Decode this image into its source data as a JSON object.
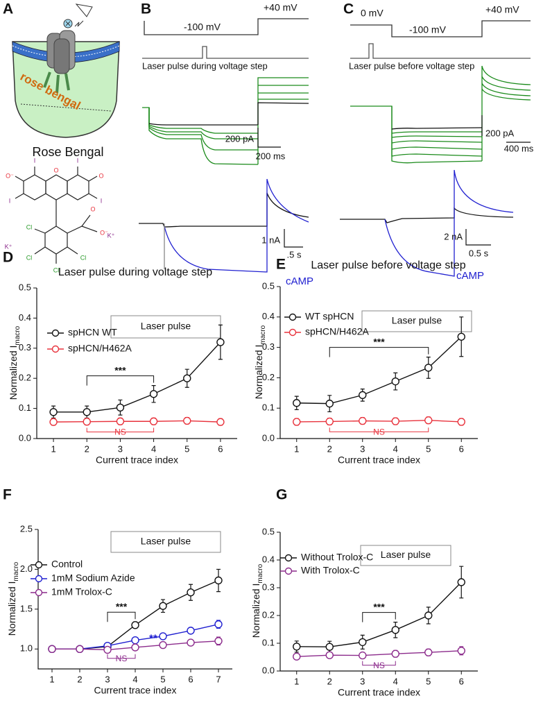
{
  "panel_labels": [
    "A",
    "B",
    "C",
    "D",
    "E",
    "F",
    "G"
  ],
  "panel_a": {
    "dye_label": "rose bengal",
    "title": "Rose Bengal",
    "atoms": [
      "O⁻",
      "I",
      "O",
      "I",
      "O",
      "I",
      "I",
      "O",
      "O⁻",
      "K⁺",
      "K⁺",
      "Cl",
      "Cl",
      "Cl",
      "Cl"
    ]
  },
  "panel_b": {
    "step_high": "+40 mV",
    "step_low": "-100 mV",
    "laser": "Laser pulse during voltage step",
    "scale_current": "200 pA",
    "scale_time": "200 ms",
    "scale_current2": "1 nA",
    "scale_time2": ".5 s",
    "camp": "cAMP"
  },
  "panel_c": {
    "step_zero": "0 mV",
    "step_low": "-100 mV",
    "step_high": "+40 mV",
    "laser": "Laser pulse before voltage step",
    "scale_current": "200 pA",
    "scale_time": "400 ms",
    "scale_current2": "2 nA",
    "scale_time2": "0.5 s",
    "camp": "cAMP"
  },
  "chart_data": [
    {
      "type": "line",
      "title": "Laser pulse during voltage step",
      "box_label": "Laser pulse",
      "xlabel": "Current trace index",
      "ylabel": "Normalized I",
      "ylabel_sub": "macro",
      "x": [
        1,
        2,
        3,
        4,
        5,
        6
      ],
      "xlim": [
        0.5,
        6.5
      ],
      "xticks": [
        1,
        2,
        3,
        4,
        5,
        6
      ],
      "ylim": [
        0,
        0.5
      ],
      "yticks": [
        {
          "value": 0,
          "label": "0.0"
        },
        0.1,
        0.2,
        0.3,
        0.4,
        0.5
      ],
      "legend": "upper left",
      "series": [
        {
          "name": "spHCN WT",
          "color": "#111111",
          "values": [
            0.088,
            0.088,
            0.103,
            0.148,
            0.2,
            0.32
          ],
          "errors": [
            0.02,
            0.02,
            0.025,
            0.028,
            0.03,
            0.057
          ]
        },
        {
          "name": "spHCN/H462A",
          "color": "#e8323c",
          "values": [
            0.055,
            0.056,
            0.057,
            0.057,
            0.059,
            0.055
          ],
          "errors": [
            0.011,
            0.011,
            0.011,
            0.011,
            0.011,
            0.011
          ]
        }
      ],
      "annotations": [
        {
          "text": "***",
          "from": 2,
          "to": 4,
          "side": "above",
          "color": "#111111"
        },
        {
          "text": "NS",
          "from": 2,
          "to": 4,
          "side": "below",
          "color": "#e8323c"
        }
      ]
    },
    {
      "type": "line",
      "title": "Laser pulse before voltage step",
      "box_label": "Laser pulse",
      "xlabel": "Current trace index",
      "ylabel": "Normalized I",
      "ylabel_sub": "macro",
      "x": [
        1,
        2,
        3,
        4,
        5,
        6
      ],
      "xlim": [
        0.5,
        6.5
      ],
      "xticks": [
        1,
        2,
        3,
        4,
        5,
        6
      ],
      "ylim": [
        0,
        0.5
      ],
      "yticks": [
        {
          "value": 0,
          "label": "0.0"
        },
        0.1,
        0.2,
        0.3,
        0.4,
        0.5
      ],
      "legend": "upper left",
      "series": [
        {
          "name": "WT spHCN",
          "color": "#111111",
          "values": [
            0.117,
            0.115,
            0.143,
            0.188,
            0.233,
            0.335
          ],
          "errors": [
            0.022,
            0.027,
            0.02,
            0.028,
            0.035,
            0.065
          ]
        },
        {
          "name": "spHCN/H462A",
          "color": "#e8323c",
          "values": [
            0.055,
            0.056,
            0.058,
            0.057,
            0.06,
            0.055
          ],
          "errors": [
            0.011,
            0.011,
            0.011,
            0.011,
            0.011,
            0.011
          ]
        }
      ],
      "annotations": [
        {
          "text": "***",
          "from": 2,
          "to": 5,
          "side": "above",
          "color": "#111111"
        },
        {
          "text": "NS",
          "from": 2,
          "to": 5,
          "side": "below",
          "color": "#e8323c"
        }
      ]
    },
    {
      "type": "line",
      "box_label": "Laser pulse",
      "xlabel": "Current trace index",
      "ylabel": "Normalized I",
      "ylabel_sub": "macro",
      "x": [
        1,
        2,
        3,
        4,
        5,
        6,
        7
      ],
      "xlim": [
        0.5,
        7.5
      ],
      "xticks": [
        1,
        2,
        3,
        4,
        5,
        6,
        7
      ],
      "ylim": [
        0.75,
        2.5
      ],
      "yticks": [
        {
          "value": 1,
          "label": "1.0"
        },
        1.5,
        {
          "value": 2,
          "label": "2.0"
        },
        2.5
      ],
      "legend": "upper left",
      "series": [
        {
          "name": "Control",
          "color": "#111111",
          "values": [
            1,
            1,
            1.03,
            1.3,
            1.54,
            1.71,
            1.86
          ],
          "errors": [
            0,
            0.01,
            0.02,
            0.04,
            0.08,
            0.1,
            0.14
          ]
        },
        {
          "name": "1mM Sodium Azide",
          "color": "#1f1fd0",
          "values": [
            1,
            1,
            1.04,
            1.11,
            1.16,
            1.23,
            1.31
          ],
          "errors": [
            0,
            0.01,
            0.02,
            0.02,
            0.02,
            0.02,
            0.05
          ]
        },
        {
          "name": "1mM Trolox-C",
          "color": "#8b2a8b",
          "values": [
            1,
            1,
            0.99,
            1.02,
            1.05,
            1.08,
            1.1
          ],
          "errors": [
            0,
            0.01,
            0.02,
            0.02,
            0.02,
            0.03,
            0.05
          ]
        }
      ],
      "annotations": [
        {
          "text": "***",
          "from": 3,
          "to": 4,
          "side": "above",
          "color": "#111111"
        },
        {
          "text": "**",
          "at": 4,
          "series": 1,
          "color": "#1f1fd0"
        },
        {
          "text": "NS",
          "from": 3,
          "to": 4,
          "side": "below",
          "color": "#8b2a8b"
        }
      ]
    },
    {
      "type": "line",
      "box_label": "Laser pulse",
      "xlabel": "Current trace index",
      "ylabel": "Normalized I",
      "ylabel_sub": "macro",
      "x": [
        1,
        2,
        3,
        4,
        5,
        6
      ],
      "xlim": [
        0.5,
        6.5
      ],
      "xticks": [
        1,
        2,
        3,
        4,
        5,
        6
      ],
      "ylim": [
        0,
        0.5
      ],
      "yticks": [
        {
          "value": 0,
          "label": "0.0"
        },
        0.1,
        0.2,
        0.3,
        0.4,
        0.5
      ],
      "legend": "upper left",
      "series": [
        {
          "name": "Without Trolox-C",
          "color": "#111111",
          "values": [
            0.088,
            0.087,
            0.104,
            0.148,
            0.2,
            0.32
          ],
          "errors": [
            0.02,
            0.02,
            0.025,
            0.028,
            0.03,
            0.057
          ]
        },
        {
          "name": "With Trolox-C",
          "color": "#8b2a8b",
          "values": [
            0.052,
            0.057,
            0.056,
            0.062,
            0.067,
            0.073
          ],
          "errors": [
            0.008,
            0.01,
            0.01,
            0.012,
            0.012,
            0.015
          ]
        }
      ],
      "annotations": [
        {
          "text": "***",
          "from": 3,
          "to": 4,
          "side": "above",
          "color": "#111111"
        },
        {
          "text": "NS",
          "from": 3,
          "to": 4,
          "side": "below",
          "color": "#8b2a8b"
        }
      ]
    }
  ]
}
